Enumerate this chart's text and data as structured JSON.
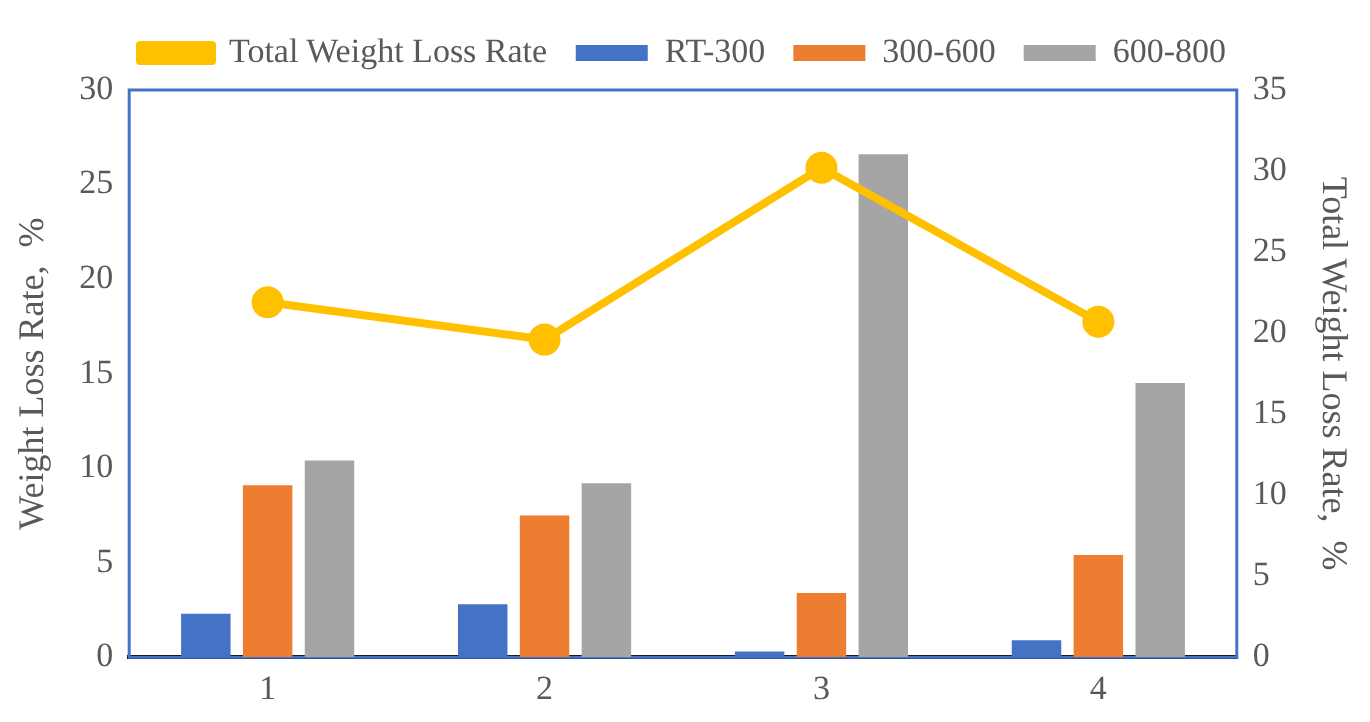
{
  "chart_data": {
    "type": "bar",
    "categories": [
      "1",
      "2",
      "3",
      "4"
    ],
    "series": [
      {
        "name": "RT-300",
        "color": "#4472c4",
        "values": [
          2.3,
          2.8,
          0.3,
          0.9
        ]
      },
      {
        "name": "300-600",
        "color": "#ed7d31",
        "values": [
          9.1,
          7.5,
          3.4,
          5.4
        ]
      },
      {
        "name": "600-800",
        "color": "#a5a5a5",
        "values": [
          10.4,
          9.2,
          26.6,
          14.5
        ]
      },
      {
        "name": "Total Weight Loss Rate",
        "type": "line",
        "axis": "y2",
        "color": "#ffc000",
        "values": [
          21.9,
          19.6,
          30.2,
          20.7
        ]
      }
    ],
    "ylabel": "Weight Loss Rate,  %",
    "y2label": "Total Weight Loss Rate,  %",
    "ylim": [
      0,
      30
    ],
    "yticks": [
      0,
      5,
      10,
      15,
      20,
      25,
      30
    ],
    "y2lim": [
      0,
      35
    ],
    "y2ticks": [
      0,
      5,
      10,
      15,
      20,
      25,
      30,
      35
    ],
    "grid": false,
    "legend": "top",
    "marker": "circle"
  }
}
